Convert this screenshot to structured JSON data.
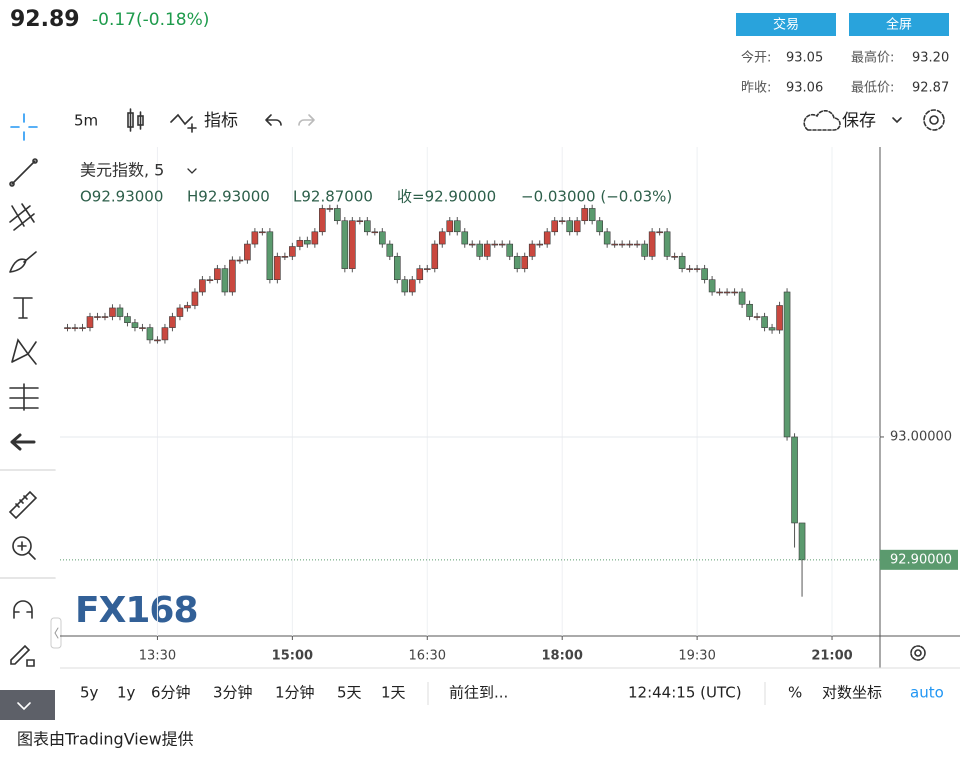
{
  "header": {
    "price": "92.89",
    "change": "-0.17(-0.18%)",
    "buttons": [
      "交易",
      "全屏"
    ],
    "stats": [
      [
        "今开:",
        "93.05"
      ],
      [
        "最高价:",
        "93.20"
      ],
      [
        "昨收:",
        "93.06"
      ],
      [
        "最低价:",
        "92.87"
      ]
    ]
  },
  "toolbar": {
    "interval": "5m",
    "indicators": "指标",
    "save": "保存"
  },
  "bottom_bar": {
    "ranges": [
      "5y",
      "1y",
      "6分钟",
      "3分钟",
      "1分钟",
      "5天",
      "1天"
    ],
    "goto": "前往到...",
    "clock": "12:44:15 (UTC)",
    "percent": "%",
    "log": "对数坐标",
    "auto": "auto"
  },
  "footer": "图表由TradingView提供",
  "watermark": "FX168",
  "chart_data": {
    "type": "candlestick",
    "legend": {
      "title": "美元指数, 5",
      "items": [
        "O92.93000",
        "H92.93000",
        "L92.87000",
        "收=92.90000",
        "−0.03000 (−0.03%)"
      ]
    },
    "x": [
      "12:30",
      "12:35",
      "12:40",
      "12:45",
      "12:50",
      "12:55",
      "13:00",
      "13:05",
      "13:10",
      "13:15",
      "13:20",
      "13:25",
      "13:30",
      "13:35",
      "13:40",
      "13:45",
      "13:50",
      "13:55",
      "14:00",
      "14:05",
      "14:10",
      "14:15",
      "14:20",
      "14:25",
      "14:30",
      "14:35",
      "14:40",
      "14:45",
      "14:50",
      "14:55",
      "15:00",
      "15:05",
      "15:10",
      "15:15",
      "15:20",
      "15:25",
      "15:30",
      "15:35",
      "15:40",
      "15:45",
      "15:50",
      "15:55",
      "16:00",
      "16:05",
      "16:10",
      "16:15",
      "16:20",
      "16:25",
      "16:30",
      "16:35",
      "16:40",
      "16:45",
      "16:50",
      "16:55",
      "17:00",
      "17:05",
      "17:10",
      "17:15",
      "17:20",
      "17:25",
      "17:30",
      "17:35",
      "17:40",
      "17:45",
      "17:50",
      "17:55",
      "18:00",
      "18:05",
      "18:10",
      "18:15",
      "18:20",
      "18:25",
      "18:30",
      "18:35",
      "18:40",
      "18:45",
      "18:50",
      "18:55",
      "19:00",
      "19:05",
      "19:10",
      "19:15",
      "19:20",
      "19:25",
      "19:30",
      "19:35",
      "19:40",
      "19:45",
      "19:50",
      "19:55",
      "20:00",
      "20:05",
      "20:10",
      "20:15",
      "20:20",
      "20:25",
      "20:30",
      "20:35",
      "20:40"
    ],
    "open": [
      93.089,
      93.089,
      93.089,
      93.089,
      93.098,
      93.098,
      93.098,
      93.105,
      93.098,
      93.093,
      93.089,
      93.089,
      93.079,
      93.079,
      93.089,
      93.098,
      93.105,
      93.107,
      93.118,
      93.128,
      93.128,
      93.137,
      93.118,
      93.144,
      93.144,
      93.157,
      93.167,
      93.167,
      93.128,
      93.147,
      93.147,
      93.155,
      93.16,
      93.157,
      93.167,
      93.186,
      93.186,
      93.176,
      93.137,
      93.176,
      93.176,
      93.167,
      93.167,
      93.157,
      93.147,
      93.128,
      93.118,
      93.128,
      93.137,
      93.137,
      93.157,
      93.167,
      93.176,
      93.167,
      93.157,
      93.157,
      93.147,
      93.157,
      93.157,
      93.157,
      93.147,
      93.137,
      93.147,
      93.157,
      93.157,
      93.167,
      93.176,
      93.176,
      93.167,
      93.176,
      93.186,
      93.176,
      93.167,
      93.157,
      93.157,
      93.157,
      93.157,
      93.157,
      93.147,
      93.167,
      93.167,
      93.147,
      93.147,
      93.137,
      93.137,
      93.137,
      93.128,
      93.118,
      93.118,
      93.118,
      93.118,
      93.108,
      93.098,
      93.098,
      93.089,
      93.087,
      93.118,
      93.0,
      92.93
    ],
    "high": [
      93.092,
      93.092,
      93.092,
      93.101,
      93.101,
      93.101,
      93.108,
      93.108,
      93.101,
      93.096,
      93.092,
      93.092,
      93.082,
      93.092,
      93.101,
      93.108,
      93.11,
      93.121,
      93.131,
      93.131,
      93.14,
      93.14,
      93.147,
      93.147,
      93.16,
      93.17,
      93.17,
      93.17,
      93.15,
      93.15,
      93.158,
      93.163,
      93.163,
      93.17,
      93.189,
      93.189,
      93.189,
      93.179,
      93.179,
      93.179,
      93.179,
      93.17,
      93.17,
      93.16,
      93.15,
      93.131,
      93.131,
      93.14,
      93.14,
      93.16,
      93.17,
      93.179,
      93.179,
      93.17,
      93.16,
      93.16,
      93.16,
      93.16,
      93.16,
      93.16,
      93.15,
      93.15,
      93.16,
      93.16,
      93.17,
      93.179,
      93.179,
      93.179,
      93.179,
      93.189,
      93.189,
      93.179,
      93.17,
      93.16,
      93.16,
      93.16,
      93.16,
      93.16,
      93.17,
      93.17,
      93.17,
      93.15,
      93.15,
      93.14,
      93.14,
      93.14,
      93.131,
      93.121,
      93.121,
      93.121,
      93.121,
      93.111,
      93.101,
      93.101,
      93.092,
      93.11,
      93.121,
      93.003,
      92.93
    ],
    "low": [
      93.086,
      93.086,
      93.086,
      93.086,
      93.095,
      93.095,
      93.095,
      93.095,
      93.09,
      93.086,
      93.086,
      93.076,
      93.076,
      93.076,
      93.086,
      93.095,
      93.102,
      93.104,
      93.115,
      93.125,
      93.125,
      93.115,
      93.115,
      93.141,
      93.141,
      93.154,
      93.164,
      93.125,
      93.125,
      93.144,
      93.144,
      93.152,
      93.154,
      93.154,
      93.164,
      93.183,
      93.173,
      93.134,
      93.134,
      93.173,
      93.164,
      93.164,
      93.154,
      93.144,
      93.125,
      93.115,
      93.115,
      93.125,
      93.134,
      93.134,
      93.154,
      93.164,
      93.164,
      93.154,
      93.154,
      93.144,
      93.144,
      93.154,
      93.154,
      93.144,
      93.134,
      93.134,
      93.144,
      93.154,
      93.154,
      93.164,
      93.173,
      93.164,
      93.164,
      93.173,
      93.173,
      93.164,
      93.154,
      93.154,
      93.154,
      93.154,
      93.154,
      93.144,
      93.144,
      93.164,
      93.144,
      93.144,
      93.134,
      93.134,
      93.134,
      93.125,
      93.115,
      93.115,
      93.115,
      93.115,
      93.105,
      93.095,
      93.095,
      93.086,
      93.084,
      93.084,
      92.997,
      92.91,
      92.87
    ],
    "close": [
      93.089,
      93.089,
      93.089,
      93.098,
      93.098,
      93.098,
      93.105,
      93.098,
      93.093,
      93.089,
      93.089,
      93.079,
      93.079,
      93.089,
      93.098,
      93.105,
      93.107,
      93.118,
      93.128,
      93.128,
      93.137,
      93.118,
      93.144,
      93.144,
      93.157,
      93.167,
      93.167,
      93.128,
      93.147,
      93.147,
      93.155,
      93.16,
      93.157,
      93.167,
      93.186,
      93.186,
      93.176,
      93.137,
      93.176,
      93.176,
      93.167,
      93.167,
      93.157,
      93.147,
      93.128,
      93.118,
      93.128,
      93.137,
      93.137,
      93.157,
      93.167,
      93.176,
      93.167,
      93.157,
      93.157,
      93.147,
      93.157,
      93.157,
      93.157,
      93.147,
      93.137,
      93.147,
      93.157,
      93.157,
      93.167,
      93.176,
      93.176,
      93.167,
      93.176,
      93.186,
      93.176,
      93.167,
      93.157,
      93.157,
      93.157,
      93.157,
      93.157,
      93.147,
      93.167,
      93.167,
      93.147,
      93.147,
      93.137,
      93.137,
      93.137,
      93.128,
      93.118,
      93.118,
      93.118,
      93.118,
      93.108,
      93.098,
      93.098,
      93.089,
      93.087,
      93.107,
      93.0,
      92.93,
      92.9
    ],
    "up_color": "#c9483f",
    "down_color": "#5b9a6e",
    "xlim": [
      "12:25",
      "21:32"
    ],
    "xticks": [
      "13:30",
      "15:00",
      "16:30",
      "18:00",
      "19:30",
      "21:00"
    ],
    "ylim": [
      92.838,
      93.236
    ],
    "yticks": [
      {
        "value": 93,
        "label": "93.00000"
      }
    ],
    "last_price": {
      "value": 92.9,
      "label": "92.90000"
    },
    "grid": true
  }
}
